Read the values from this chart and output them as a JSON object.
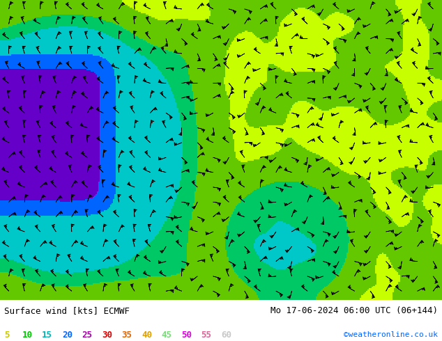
{
  "title_left": "Surface wind [kts] ECMWF",
  "title_right": "Mo 17-06-2024 06:00 UTC (06+144)",
  "credit": "©weatheronline.co.uk",
  "legend_values": [
    5,
    10,
    15,
    20,
    25,
    30,
    35,
    40,
    45,
    50,
    55,
    60
  ],
  "legend_colors": [
    "#c8c800",
    "#00c800",
    "#00c8c8",
    "#0064ff",
    "#c800c8",
    "#ff0000",
    "#ff6400",
    "#ffc800",
    "#c8ffc8",
    "#ff00ff",
    "#ff69b4",
    "#ffffff"
  ],
  "colormap_colors": [
    "#ffff00",
    "#c8ff00",
    "#64ff00",
    "#00ff00",
    "#00ffc8",
    "#00c8ff",
    "#0064ff",
    "#6400ff",
    "#ff00ff",
    "#ff0064",
    "#ff6400",
    "#ffc800"
  ],
  "bg_color": "#ffffff",
  "map_bg": "#ffff96",
  "fig_width": 6.34,
  "fig_height": 4.9
}
